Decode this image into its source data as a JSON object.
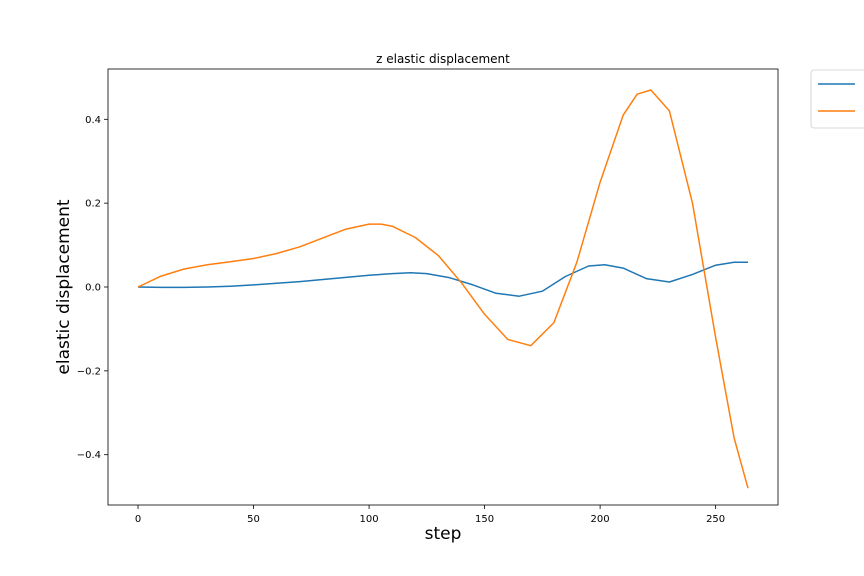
{
  "chart_data": {
    "type": "line",
    "title": "z elastic displacement",
    "xlabel": "step",
    "ylabel": "elastic displacement",
    "xlim": [
      -13,
      277
    ],
    "ylim": [
      -0.52,
      0.52
    ],
    "xticks": [
      0,
      50,
      100,
      150,
      200,
      250
    ],
    "yticks": [
      -0.4,
      -0.2,
      0.0,
      0.2,
      0.4
    ],
    "xtick_labels": [
      "0",
      "50",
      "100",
      "150",
      "200",
      "250"
    ],
    "ytick_labels": [
      "−0.4",
      "−0.2",
      "0.0",
      "0.2",
      "0.4"
    ],
    "grid": false,
    "legend": {
      "placement": "outside-top-right",
      "entries": [
        "",
        ""
      ]
    },
    "series": [
      {
        "color": "#1f77b4",
        "x": [
          0,
          10,
          20,
          30,
          40,
          50,
          60,
          70,
          80,
          90,
          100,
          110,
          118,
          125,
          135,
          145,
          155,
          165,
          175,
          185,
          195,
          202,
          210,
          220,
          230,
          240,
          250,
          258,
          264
        ],
        "y": [
          0.0,
          -0.001,
          -0.001,
          0.0,
          0.002,
          0.005,
          0.009,
          0.013,
          0.018,
          0.023,
          0.028,
          0.032,
          0.034,
          0.032,
          0.022,
          0.005,
          -0.015,
          -0.022,
          -0.01,
          0.025,
          0.05,
          0.053,
          0.045,
          0.02,
          0.012,
          0.03,
          0.052,
          0.059,
          0.059
        ]
      },
      {
        "color": "#ff7f0e",
        "x": [
          0,
          10,
          20,
          30,
          40,
          50,
          60,
          70,
          80,
          90,
          100,
          105,
          110,
          120,
          130,
          140,
          150,
          160,
          170,
          180,
          190,
          200,
          210,
          216,
          222,
          230,
          240,
          250,
          258,
          264
        ],
        "y": [
          0.0,
          0.026,
          0.043,
          0.053,
          0.06,
          0.068,
          0.08,
          0.096,
          0.117,
          0.138,
          0.15,
          0.15,
          0.145,
          0.118,
          0.075,
          0.01,
          -0.065,
          -0.125,
          -0.14,
          -0.085,
          0.06,
          0.25,
          0.41,
          0.46,
          0.47,
          0.42,
          0.2,
          -0.12,
          -0.36,
          -0.48
        ]
      }
    ]
  }
}
